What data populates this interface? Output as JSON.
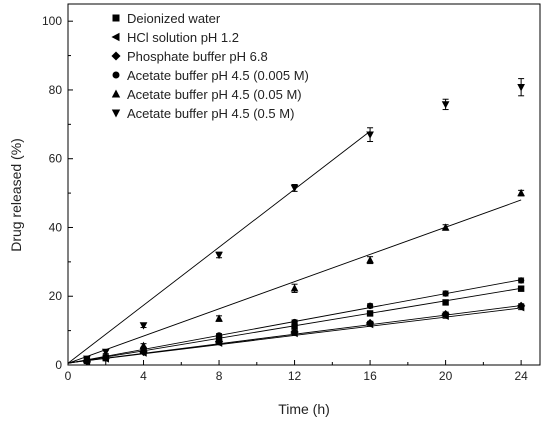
{
  "chart_data": {
    "type": "scatter",
    "title": "",
    "xlabel": "Time (h)",
    "ylabel": "Drug released (%)",
    "xlim": [
      0,
      25
    ],
    "ylim": [
      0,
      105
    ],
    "xticks": [
      0,
      4,
      8,
      12,
      16,
      20,
      24
    ],
    "yticks": [
      0,
      20,
      40,
      60,
      80,
      100
    ],
    "grid": false,
    "legend_position": "top-left",
    "series": [
      {
        "name": "Deionized water",
        "marker": "square",
        "x": [
          1,
          2,
          4,
          8,
          12,
          16,
          20,
          24
        ],
        "y": [
          1.2,
          2.0,
          4.3,
          7.8,
          11.2,
          15.0,
          18.2,
          22.2
        ],
        "err": [
          0.3,
          0.3,
          0.4,
          0.5,
          0.5,
          0.6,
          0.6,
          0.7
        ],
        "fit": {
          "x": [
            0,
            24
          ],
          "y": [
            0.5,
            22.3
          ]
        }
      },
      {
        "name": "HCl solution pH 1.2",
        "marker": "triangle-left",
        "x": [
          1,
          2,
          4,
          8,
          12,
          16,
          20,
          24
        ],
        "y": [
          1.0,
          1.8,
          3.5,
          6.4,
          9.2,
          11.8,
          14.2,
          16.7
        ],
        "err": [
          0.3,
          0.3,
          0.3,
          0.4,
          0.5,
          0.5,
          0.6,
          0.6
        ],
        "fit": {
          "x": [
            0,
            24
          ],
          "y": [
            0.6,
            16.6
          ]
        }
      },
      {
        "name": "Phosphate buffer pH 6.8",
        "marker": "diamond",
        "x": [
          1,
          2,
          4,
          8,
          12,
          16,
          20,
          24
        ],
        "y": [
          1.1,
          2.0,
          3.8,
          6.8,
          9.6,
          12.2,
          14.8,
          17.2
        ],
        "err": [
          0.3,
          0.3,
          0.3,
          0.4,
          0.5,
          0.5,
          0.6,
          0.6
        ],
        "fit": {
          "x": [
            0,
            24
          ],
          "y": [
            0.6,
            17.3
          ]
        }
      },
      {
        "name": "Acetate buffer pH 4.5 (0.005 M)",
        "marker": "circle",
        "x": [
          1,
          2,
          4,
          8,
          12,
          16,
          20,
          24
        ],
        "y": [
          1.3,
          2.1,
          4.8,
          8.6,
          12.5,
          17.2,
          20.8,
          24.6
        ],
        "err": [
          0.3,
          0.3,
          0.4,
          0.5,
          0.6,
          0.6,
          0.7,
          0.7
        ],
        "fit": {
          "x": [
            0,
            24
          ],
          "y": [
            0.5,
            24.8
          ]
        }
      },
      {
        "name": "Acetate buffer pH 4.5 (0.05 M)",
        "marker": "triangle-up",
        "x": [
          1,
          2,
          4,
          8,
          12,
          16,
          20,
          24
        ],
        "y": [
          1.5,
          2.6,
          5.6,
          13.5,
          22.3,
          30.5,
          40.0,
          50.0
        ],
        "err": [
          0.4,
          0.4,
          0.6,
          0.8,
          1.2,
          1.0,
          0.8,
          0.8
        ],
        "fit": {
          "x": [
            0,
            24
          ],
          "y": [
            0.5,
            48.0
          ]
        }
      },
      {
        "name": "Acetate buffer pH 4.5 (0.5 M)",
        "marker": "triangle-down",
        "x": [
          1,
          2,
          4,
          8,
          12,
          16,
          20,
          24
        ],
        "y": [
          1.8,
          3.8,
          11.5,
          32.0,
          51.5,
          67.0,
          75.8,
          80.8
        ],
        "err": [
          0.4,
          0.5,
          0.6,
          0.8,
          1.0,
          2.0,
          1.5,
          2.5
        ],
        "fit": {
          "x": [
            0,
            16
          ],
          "y": [
            0.5,
            68.0
          ]
        }
      }
    ]
  }
}
